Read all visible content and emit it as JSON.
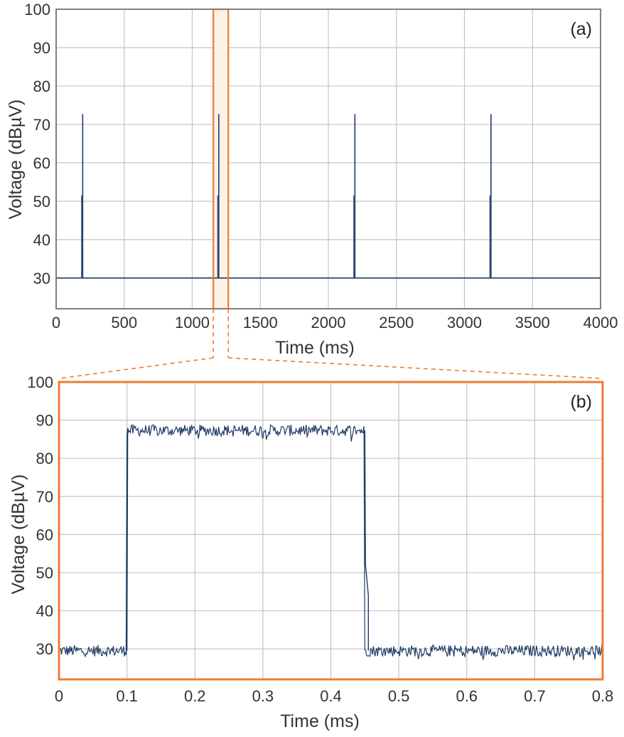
{
  "colors": {
    "trace": "#1f3b66",
    "grid": "#c4c4c4",
    "frame_a": "#7f7f7f",
    "highlight": "#ed7d31",
    "text": "#333333"
  },
  "chart_data": [
    {
      "type": "line",
      "panel_label": "(a)",
      "xlabel": "Time (ms)",
      "ylabel": "Voltage (dBµV)",
      "xlim": [
        0,
        4000
      ],
      "ylim": [
        22,
        100
      ],
      "x_ticks": [
        0,
        500,
        1000,
        1500,
        2000,
        2500,
        3000,
        3500,
        4000
      ],
      "x_tick_labels": [
        "0",
        "500",
        "1000",
        "1500",
        "2000",
        "2500",
        "3000",
        "3500",
        "4000"
      ],
      "y_ticks": [
        30,
        40,
        50,
        60,
        70,
        80,
        90,
        100
      ],
      "y_tick_labels": [
        "30",
        "40",
        "50",
        "60",
        "70",
        "80",
        "90",
        "100"
      ],
      "grid": true,
      "baseline_dbuv": 30,
      "pulses": [
        {
          "t_ms": 195,
          "peak_dbuv": 72.7
        },
        {
          "t_ms": 1195,
          "peak_dbuv": 72.7
        },
        {
          "t_ms": 2195,
          "peak_dbuv": 72.7
        },
        {
          "t_ms": 3195,
          "peak_dbuv": 72.7
        }
      ],
      "zoom_highlight_ms": [
        1155,
        1265
      ]
    },
    {
      "type": "line",
      "panel_label": "(b)",
      "xlabel": "Time (ms)",
      "ylabel": "Voltage (dBµV)",
      "xlim": [
        0,
        0.8
      ],
      "ylim": [
        22,
        100
      ],
      "x_ticks": [
        0,
        0.1,
        0.2,
        0.3,
        0.4,
        0.5,
        0.6,
        0.7,
        0.8
      ],
      "x_tick_labels": [
        "0",
        "0.1",
        "0.2",
        "0.3",
        "0.4",
        "0.5",
        "0.6",
        "0.7",
        "0.8"
      ],
      "y_ticks": [
        30,
        40,
        50,
        60,
        70,
        80,
        90,
        100
      ],
      "y_tick_labels": [
        "30",
        "40",
        "50",
        "60",
        "70",
        "80",
        "90",
        "100"
      ],
      "grid": true,
      "off_level_dbuv": 29.5,
      "on_level_dbuv": 87.3,
      "rise_ms": 0.1,
      "fall_ms": 0.45,
      "noise_db": 1.5
    }
  ]
}
